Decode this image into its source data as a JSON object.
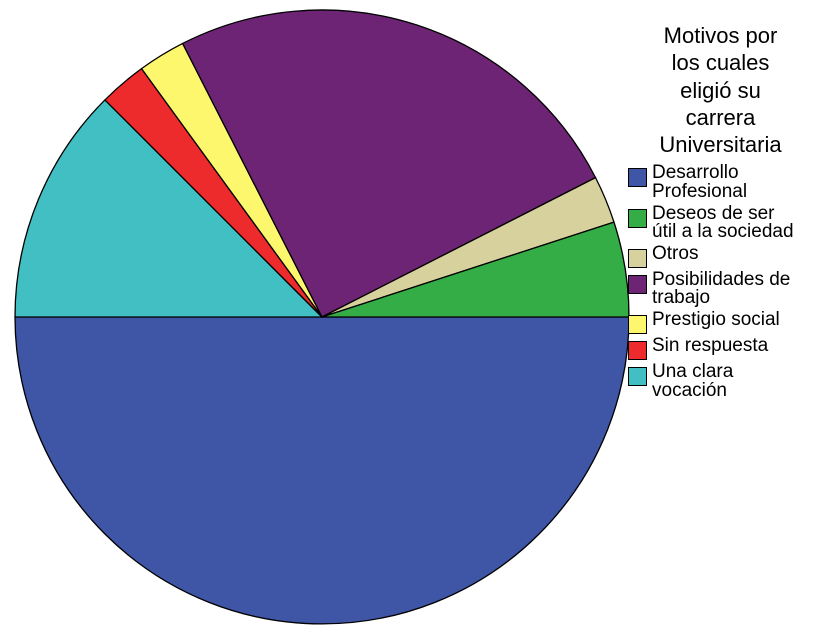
{
  "chart_data": {
    "type": "pie",
    "title": "Motivos por\nlos cuales\neligió su\ncarrera\nUniversitaria",
    "slices": [
      {
        "label": "Desarrollo\nProfesional",
        "value": 50.0,
        "color": "#3f55a6"
      },
      {
        "label": "Deseos de ser\nútil a la sociedad",
        "value": 5.0,
        "color": "#35ad47"
      },
      {
        "label": "Otros",
        "value": 2.5,
        "color": "#d7d19d"
      },
      {
        "label": "Posibilidades de\ntrabajo",
        "value": 25.0,
        "color": "#6e2474"
      },
      {
        "label": "Prestigio social",
        "value": 2.5,
        "color": "#fdf76d"
      },
      {
        "label": "Sin respuesta",
        "value": 2.5,
        "color": "#ee2b2c"
      },
      {
        "label": "Una clara\nvocación",
        "value": 12.5,
        "color": "#41bfc3"
      }
    ],
    "legend_position": "right",
    "draw_order": [
      "Desarrollo\nProfesional",
      "Una clara\nvocación",
      "Sin respuesta",
      "Prestigio social",
      "Posibilidades de\ntrabajo",
      "Otros",
      "Deseos de ser\nútil a la sociedad"
    ]
  }
}
